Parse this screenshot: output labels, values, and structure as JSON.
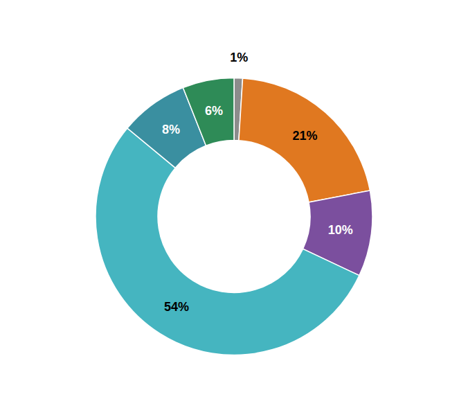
{
  "chart_data": {
    "type": "donut",
    "values": [
      1,
      21,
      10,
      54,
      8,
      6
    ],
    "value_labels": [
      "1%",
      "21%",
      "10%",
      "54%",
      "8%",
      "6%"
    ],
    "colors": [
      "#8c8c8c",
      "#e07820",
      "#7b4f9e",
      "#45b5c0",
      "#3a8fa0",
      "#2e8b57"
    ],
    "data_labels": true
  }
}
